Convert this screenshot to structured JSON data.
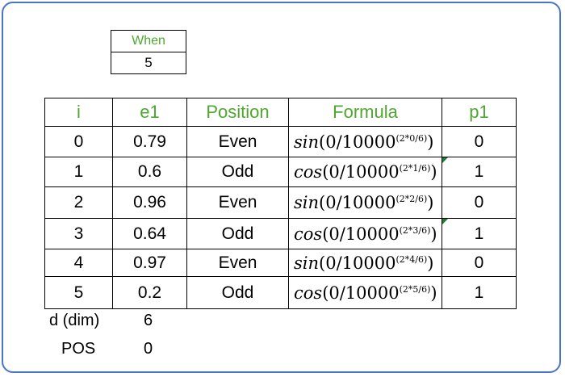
{
  "when": {
    "header": "When",
    "value": "5"
  },
  "table": {
    "headers": [
      "i",
      "e1",
      "Position",
      "Formula",
      "p1"
    ],
    "rows": [
      {
        "i": "0",
        "e1": "0.79",
        "position": "Even",
        "fn": "sin",
        "arg": "(0/10000",
        "exp": "(2*0/6)",
        "close": ")",
        "p1": "0"
      },
      {
        "i": "1",
        "e1": "0.6",
        "position": "Odd",
        "fn": "cos",
        "arg": "(0/10000",
        "exp": "(2*1/6)",
        "close": ")",
        "p1": "1"
      },
      {
        "i": "2",
        "e1": "0.96",
        "position": "Even",
        "fn": "sin",
        "arg": "(0/10000",
        "exp": "(2*2/6)",
        "close": ")",
        "p1": "0"
      },
      {
        "i": "3",
        "e1": "0.64",
        "position": "Odd",
        "fn": "cos",
        "arg": "(0/10000",
        "exp": "(2*3/6)",
        "close": ")",
        "p1": "1"
      },
      {
        "i": "4",
        "e1": "0.97",
        "position": "Even",
        "fn": "sin",
        "arg": "(0/10000",
        "exp": "(2*4/6)",
        "close": ")",
        "p1": "0"
      },
      {
        "i": "5",
        "e1": "0.2",
        "position": "Odd",
        "fn": "cos",
        "arg": "(0/10000",
        "exp": "(2*5/6)",
        "close": ")",
        "p1": "1"
      }
    ]
  },
  "info": {
    "d_label": "d (dim)",
    "d_value": "6",
    "pos_label": "POS",
    "pos_value": "0"
  },
  "colors": {
    "header_green": "#4ea72e",
    "frame_blue": "#4a74c9",
    "comment_marker": "#1e7b34"
  }
}
